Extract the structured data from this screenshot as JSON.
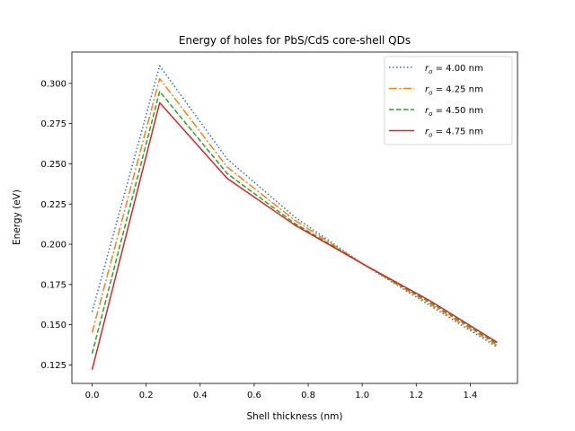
{
  "chart_data": {
    "type": "line",
    "title": "Energy of holes for PbS/CdS core-shell QDs",
    "xlabel": "Shell thickness (nm)",
    "ylabel": "Energy (eV)",
    "xlim": [
      -0.075,
      1.575
    ],
    "ylim": [
      0.1135,
      0.3195
    ],
    "xticks": [
      0.0,
      0.2,
      0.4,
      0.6,
      0.8,
      1.0,
      1.2,
      1.4
    ],
    "xtick_labels": [
      "0.0",
      "0.2",
      "0.4",
      "0.6",
      "0.8",
      "1.0",
      "1.2",
      "1.4"
    ],
    "yticks": [
      0.125,
      0.15,
      0.175,
      0.2,
      0.225,
      0.25,
      0.275,
      0.3
    ],
    "ytick_labels": [
      "0.125",
      "0.150",
      "0.175",
      "0.200",
      "0.225",
      "0.250",
      "0.275",
      "0.300"
    ],
    "grid": false,
    "legend_position": "top-right",
    "x": [
      0.0,
      0.25,
      0.5,
      0.75,
      1.0,
      1.25,
      1.5
    ],
    "series": [
      {
        "name": "r_o = 4.00 nm",
        "label_sub": "o",
        "label_value": "= 4.00 nm",
        "color": "#1f77b4",
        "dash": "1.5,2.5",
        "values": [
          0.158,
          0.311,
          0.253,
          0.217,
          0.188,
          0.162,
          0.136
        ]
      },
      {
        "name": "r_o = 4.25 nm",
        "label_sub": "o",
        "label_value": "= 4.25 nm",
        "color": "#ff7f0e",
        "dash": "9,2.5,2,2.5",
        "values": [
          0.145,
          0.303,
          0.248,
          0.215,
          0.188,
          0.163,
          0.137
        ]
      },
      {
        "name": "r_o = 4.50 nm",
        "label_sub": "o",
        "label_value": "= 4.50 nm",
        "color": "#2ca02c",
        "dash": "5.5,2.5",
        "values": [
          0.132,
          0.295,
          0.244,
          0.213,
          0.188,
          0.164,
          0.138
        ]
      },
      {
        "name": "r_o = 4.75 nm",
        "label_sub": "o",
        "label_value": "= 4.75 nm",
        "color": "#d62728",
        "dash": "",
        "values": [
          0.122,
          0.288,
          0.241,
          0.212,
          0.188,
          0.165,
          0.139
        ]
      }
    ]
  }
}
